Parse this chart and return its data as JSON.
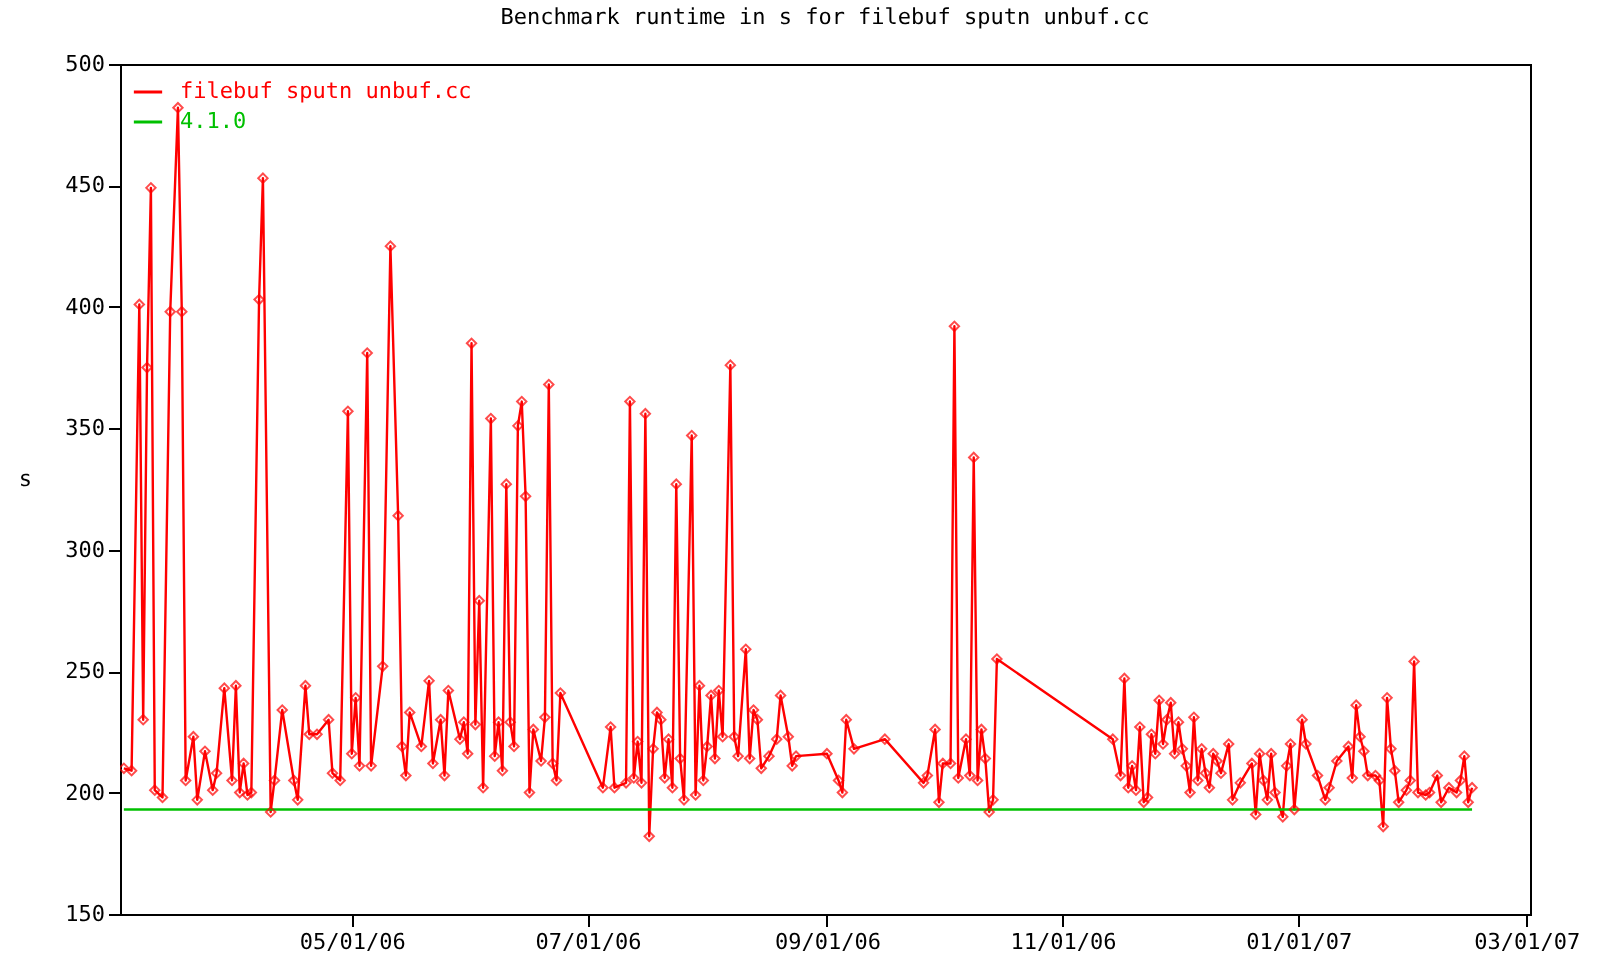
{
  "chart_data": {
    "type": "line",
    "title": "Benchmark runtime in s for filebuf sputn unbuf.cc",
    "ylabel": "s",
    "xlim": [
      "2006-03-02",
      "2007-03-02"
    ],
    "xticks": [
      {
        "value": "2006-05-01",
        "label": "05/01/06"
      },
      {
        "value": "2006-07-01",
        "label": "07/01/06"
      },
      {
        "value": "2006-09-01",
        "label": "09/01/06"
      },
      {
        "value": "2006-11-01",
        "label": "11/01/06"
      },
      {
        "value": "2007-01-01",
        "label": "01/01/07"
      },
      {
        "value": "2007-03-01",
        "label": "03/01/07"
      }
    ],
    "ylim": [
      150,
      500
    ],
    "yticks": [
      150,
      200,
      250,
      300,
      350,
      400,
      450,
      500
    ],
    "legend": "top left",
    "series": [
      {
        "name": "filebuf sputn unbuf.cc",
        "color": "#ff0000",
        "marker": "diamond",
        "x": [
          "2006-03-03",
          "2006-03-05",
          "2006-03-07",
          "2006-03-08",
          "2006-03-09",
          "2006-03-10",
          "2006-03-11",
          "2006-03-13",
          "2006-03-15",
          "2006-03-17",
          "2006-03-18",
          "2006-03-19",
          "2006-03-21",
          "2006-03-22",
          "2006-03-24",
          "2006-03-26",
          "2006-03-27",
          "2006-03-29",
          "2006-03-31",
          "2006-04-01",
          "2006-04-02",
          "2006-04-03",
          "2006-04-04",
          "2006-04-05",
          "2006-04-07",
          "2006-04-08",
          "2006-04-10",
          "2006-04-11",
          "2006-04-13",
          "2006-04-16",
          "2006-04-17",
          "2006-04-19",
          "2006-04-20",
          "2006-04-22",
          "2006-04-25",
          "2006-04-26",
          "2006-04-28",
          "2006-04-30",
          "2006-05-01",
          "2006-05-02",
          "2006-05-03",
          "2006-05-05",
          "2006-05-06",
          "2006-05-09",
          "2006-05-11",
          "2006-05-13",
          "2006-05-14",
          "2006-05-15",
          "2006-05-16",
          "2006-05-19",
          "2006-05-21",
          "2006-05-22",
          "2006-05-24",
          "2006-05-25",
          "2006-05-26",
          "2006-05-29",
          "2006-05-30",
          "2006-05-31",
          "2006-06-01",
          "2006-06-02",
          "2006-06-03",
          "2006-06-04",
          "2006-06-06",
          "2006-06-07",
          "2006-06-08",
          "2006-06-09",
          "2006-06-10",
          "2006-06-11",
          "2006-06-12",
          "2006-06-13",
          "2006-06-14",
          "2006-06-15",
          "2006-06-16",
          "2006-06-17",
          "2006-06-19",
          "2006-06-20",
          "2006-06-21",
          "2006-06-22",
          "2006-06-23",
          "2006-06-24",
          "2006-07-05",
          "2006-07-07",
          "2006-07-08",
          "2006-07-11",
          "2006-07-12",
          "2006-07-13",
          "2006-07-14",
          "2006-07-15",
          "2006-07-16",
          "2006-07-17",
          "2006-07-18",
          "2006-07-19",
          "2006-07-20",
          "2006-07-21",
          "2006-07-22",
          "2006-07-23",
          "2006-07-24",
          "2006-07-25",
          "2006-07-26",
          "2006-07-28",
          "2006-07-29",
          "2006-07-30",
          "2006-07-31",
          "2006-08-01",
          "2006-08-02",
          "2006-08-03",
          "2006-08-04",
          "2006-08-05",
          "2006-08-07",
          "2006-08-08",
          "2006-08-09",
          "2006-08-11",
          "2006-08-12",
          "2006-08-13",
          "2006-08-14",
          "2006-08-15",
          "2006-08-17",
          "2006-08-19",
          "2006-08-20",
          "2006-08-22",
          "2006-08-23",
          "2006-08-24",
          "2006-09-01",
          "2006-09-04",
          "2006-09-05",
          "2006-09-06",
          "2006-09-08",
          "2006-09-16",
          "2006-09-26",
          "2006-09-27",
          "2006-09-29",
          "2006-09-30",
          "2006-10-01",
          "2006-10-03",
          "2006-10-04",
          "2006-10-05",
          "2006-10-07",
          "2006-10-08",
          "2006-10-09",
          "2006-10-10",
          "2006-10-11",
          "2006-10-12",
          "2006-10-13",
          "2006-10-14",
          "2006-10-15",
          "2006-11-14",
          "2006-11-16",
          "2006-11-17",
          "2006-11-18",
          "2006-11-19",
          "2006-11-20",
          "2006-11-21",
          "2006-11-22",
          "2006-11-23",
          "2006-11-24",
          "2006-11-25",
          "2006-11-26",
          "2006-11-27",
          "2006-11-28",
          "2006-11-29",
          "2006-11-30",
          "2006-12-01",
          "2006-12-02",
          "2006-12-03",
          "2006-12-04",
          "2006-12-05",
          "2006-12-06",
          "2006-12-07",
          "2006-12-08",
          "2006-12-09",
          "2006-12-10",
          "2006-12-11",
          "2006-12-12",
          "2006-12-14",
          "2006-12-15",
          "2006-12-17",
          "2006-12-20",
          "2006-12-21",
          "2006-12-22",
          "2006-12-23",
          "2006-12-24",
          "2006-12-25",
          "2006-12-26",
          "2006-12-28",
          "2006-12-29",
          "2006-12-30",
          "2006-12-31",
          "2007-01-02",
          "2007-01-03",
          "2007-01-06",
          "2007-01-08",
          "2007-01-09",
          "2007-01-11",
          "2007-01-14",
          "2007-01-15",
          "2007-01-16",
          "2007-01-17",
          "2007-01-18",
          "2007-01-19",
          "2007-01-21",
          "2007-01-22",
          "2007-01-23",
          "2007-01-24",
          "2007-01-25",
          "2007-01-26",
          "2007-01-27",
          "2007-01-29",
          "2007-01-30",
          "2007-01-31",
          "2007-02-01",
          "2007-02-03",
          "2007-02-04",
          "2007-02-06",
          "2007-02-07",
          "2007-02-09",
          "2007-02-11",
          "2007-02-12",
          "2007-02-13",
          "2007-02-14",
          "2007-02-15"
        ],
        "values": [
          210,
          209,
          401,
          230,
          375,
          449,
          201,
          198,
          398,
          482,
          398,
          205,
          223,
          197,
          217,
          201,
          208,
          243,
          205,
          244,
          200,
          212,
          199,
          200,
          403,
          453,
          192,
          205,
          234,
          205,
          197,
          244,
          224,
          224,
          230,
          208,
          205,
          357,
          216,
          239,
          211,
          381,
          211,
          252,
          425,
          314,
          219,
          207,
          233,
          219,
          246,
          212,
          230,
          207,
          242,
          222,
          229,
          216,
          385,
          228,
          279,
          202,
          354,
          215,
          229,
          209,
          327,
          229,
          219,
          351,
          361,
          322,
          200,
          226,
          213,
          231,
          368,
          212,
          205,
          241,
          202,
          227,
          202,
          204,
          361,
          206,
          221,
          204,
          356,
          182,
          218,
          233,
          230,
          206,
          222,
          202,
          327,
          214,
          197,
          347,
          199,
          244,
          205,
          219,
          240,
          214,
          242,
          223,
          376,
          223,
          215,
          259,
          214,
          234,
          230,
          210,
          215,
          222,
          240,
          223,
          211,
          215,
          216,
          205,
          200,
          230,
          218,
          222,
          204,
          207,
          226,
          196,
          212,
          212,
          392,
          206,
          222,
          207,
          338,
          205,
          226,
          214,
          192,
          197,
          255,
          222,
          207,
          247,
          202,
          211,
          201,
          227,
          196,
          198,
          224,
          216,
          238,
          220,
          230,
          237,
          216,
          229,
          218,
          211,
          200,
          231,
          205,
          218,
          208,
          202,
          216,
          213,
          208,
          220,
          197,
          204,
          212,
          191,
          216,
          205,
          197,
          216,
          200,
          190,
          211,
          220,
          193,
          230,
          220,
          207,
          197,
          202,
          213,
          219,
          206,
          236,
          223,
          217,
          207,
          207,
          205,
          186,
          239,
          218,
          209,
          196,
          201,
          205,
          254,
          200,
          199,
          200,
          207,
          196,
          202,
          200,
          205,
          215,
          196,
          202
        ]
      },
      {
        "name": "4.1.0",
        "color": "#00c000",
        "marker": "none",
        "x": [
          "2006-03-03",
          "2007-02-15"
        ],
        "values": [
          193,
          193
        ]
      }
    ]
  }
}
